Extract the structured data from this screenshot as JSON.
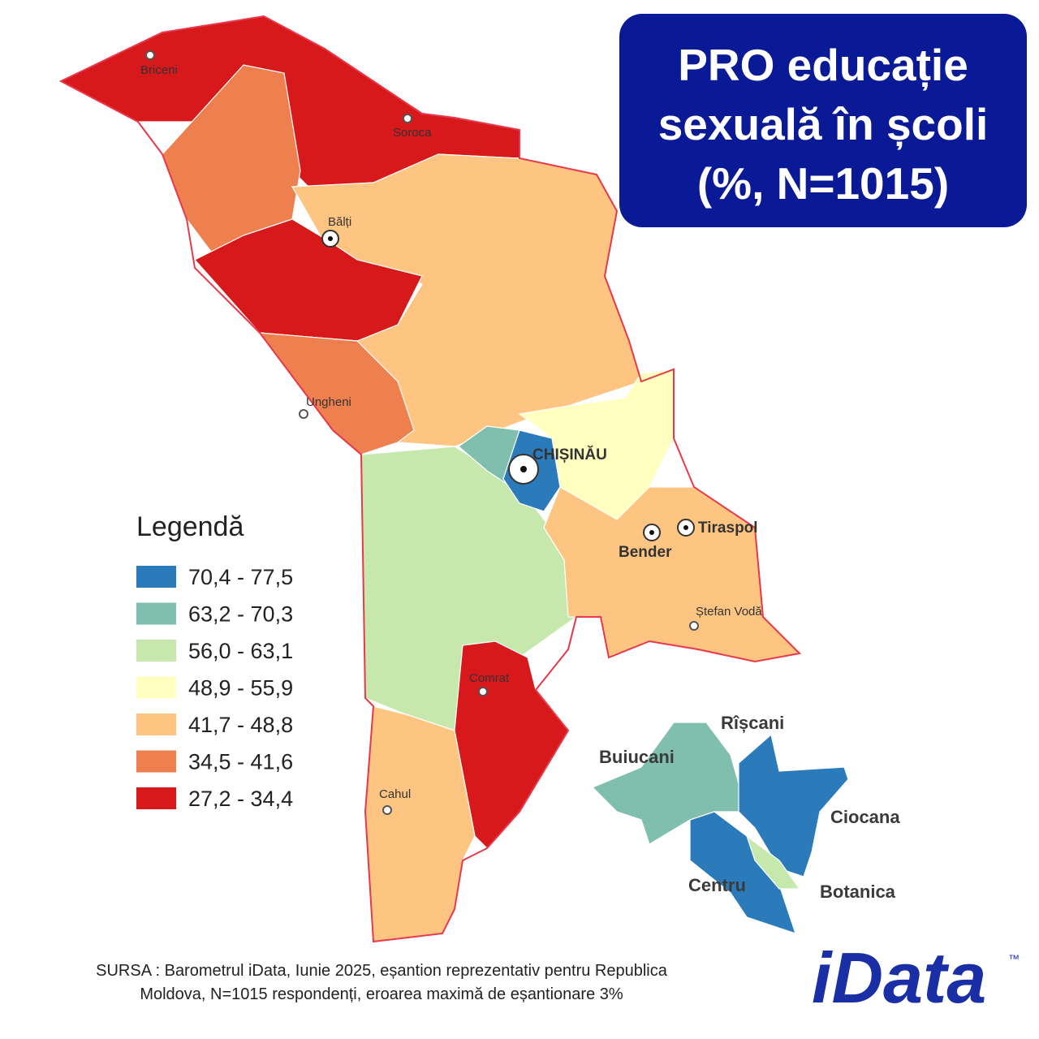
{
  "title": {
    "lines": [
      "PRO educație",
      "sexuală în școli",
      "(%, N=1015)"
    ]
  },
  "legend": {
    "title": "Legendă",
    "items": [
      {
        "label": "70,4 - 77,5",
        "color": "#2b7bba"
      },
      {
        "label": "63,2 - 70,3",
        "color": "#80bfad"
      },
      {
        "label": "56,0 - 63,1",
        "color": "#c7e8ad"
      },
      {
        "label": "48,9 - 55,9",
        "color": "#ffffbf"
      },
      {
        "label": "41,7 - 48,8",
        "color": "#fdc581"
      },
      {
        "label": "34,5 - 41,6",
        "color": "#ed804e"
      },
      {
        "label": "27,2 - 34,4",
        "color": "#d7191c"
      }
    ]
  },
  "cities": [
    "Briceni",
    "Soroca",
    "Bălți",
    "Ungheni",
    "CHIȘINĂU",
    "Tiraspol",
    "Bender",
    "Ștefan Vodă",
    "Comrat",
    "Cahul"
  ],
  "inset": {
    "sectors": [
      "Rîșcani",
      "Buiucani",
      "Ciocana",
      "Centru",
      "Botanica"
    ]
  },
  "source": {
    "lines": [
      "SURSA : Barometrul iData, Iunie 2025, eșantion reprezentativ pentru Republica",
      "Moldova, N=1015 respondenți, eroarea maximă de eșantionare 3%"
    ]
  },
  "logo": {
    "text": "iData",
    "mark": "™"
  }
}
